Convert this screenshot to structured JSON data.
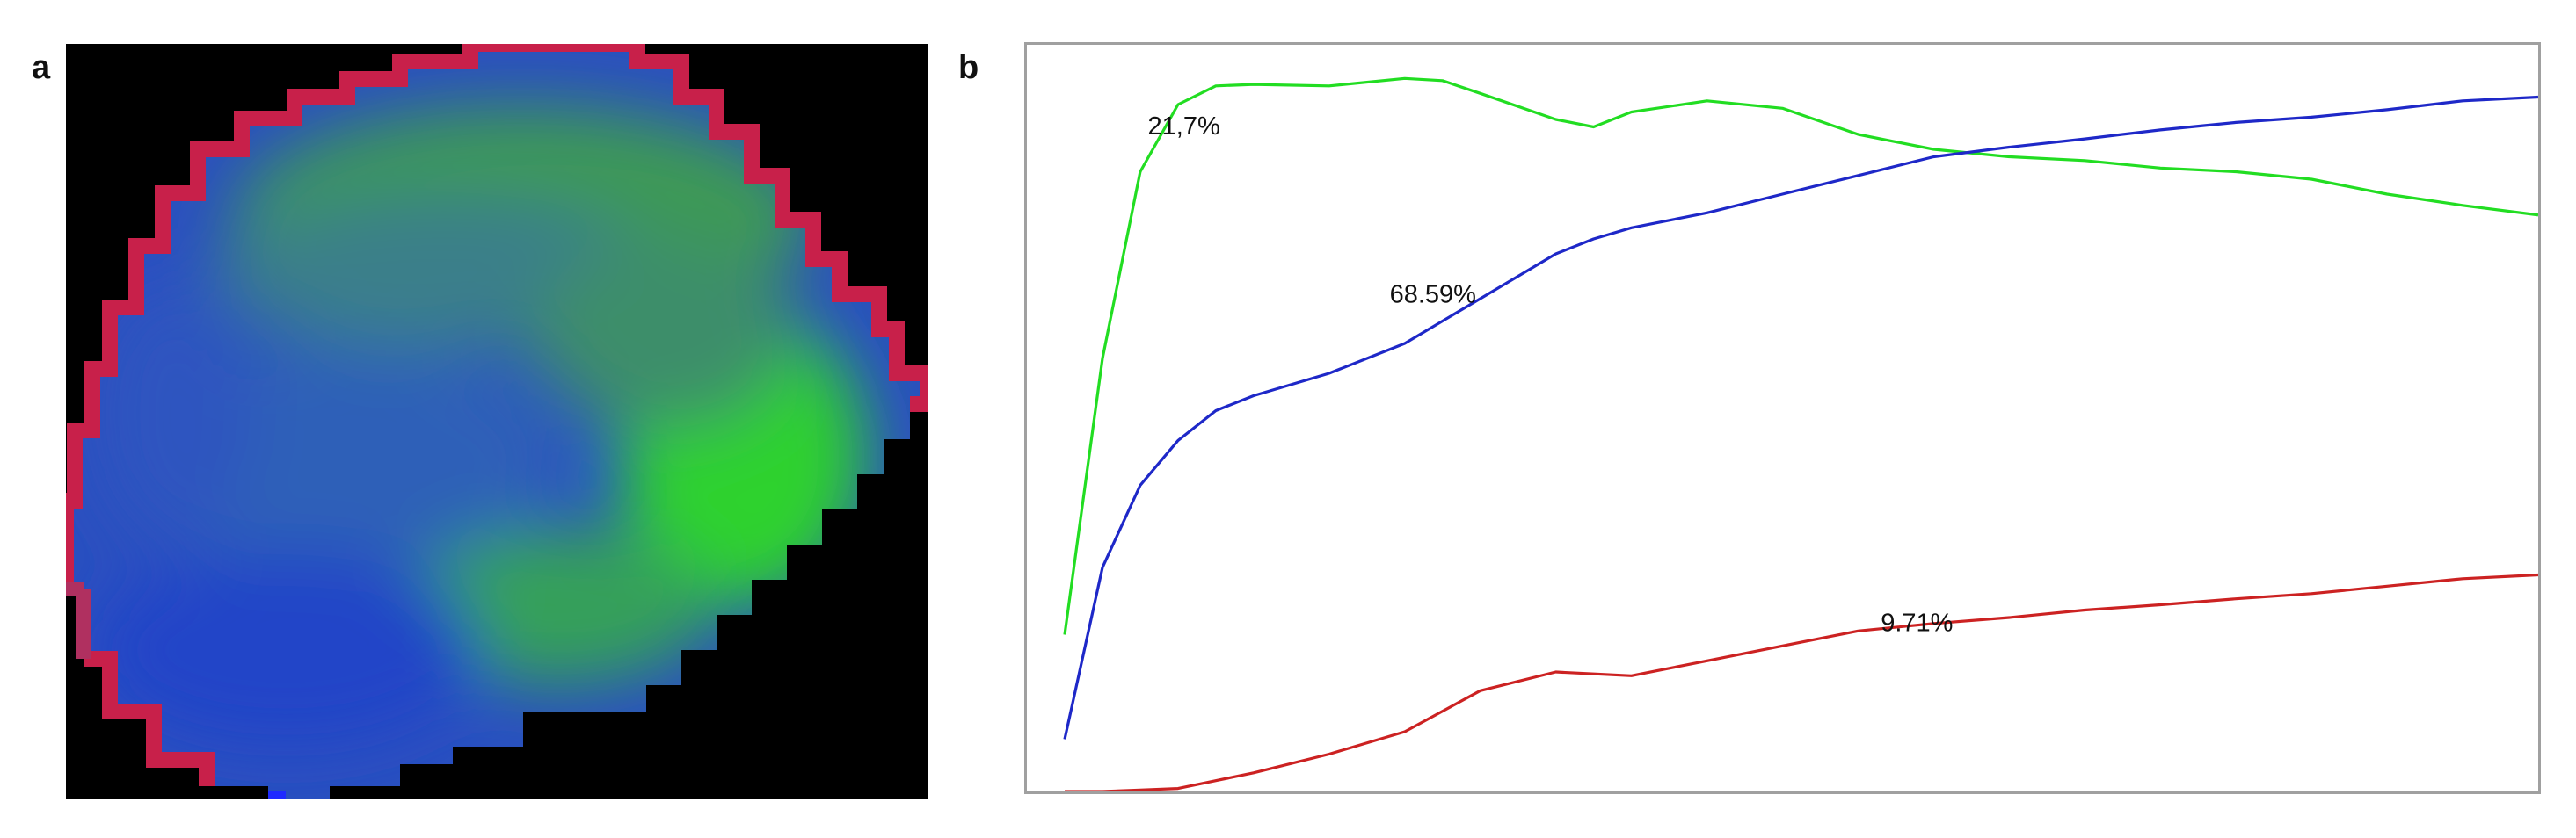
{
  "panels": {
    "a_label": "a",
    "b_label": "b"
  },
  "colors": {
    "background_map": "#000000",
    "frame": "#a0a0a0"
  },
  "chart_data": {
    "type": "line",
    "title": "",
    "xlabel": "",
    "ylabel": "",
    "x_range": [
      0,
      20
    ],
    "ylim": [
      0,
      1
    ],
    "grid": false,
    "legend": "none",
    "series": [
      {
        "color": "#22dd22",
        "label": "21,7%",
        "points": [
          [
            0.5,
            0.21
          ],
          [
            1,
            0.58
          ],
          [
            1.5,
            0.83
          ],
          [
            2,
            0.92
          ],
          [
            2.5,
            0.945
          ],
          [
            3,
            0.947
          ],
          [
            4,
            0.945
          ],
          [
            5,
            0.955
          ],
          [
            5.5,
            0.952
          ],
          [
            6,
            0.935
          ],
          [
            7,
            0.9
          ],
          [
            7.5,
            0.89
          ],
          [
            8,
            0.91
          ],
          [
            9,
            0.925
          ],
          [
            10,
            0.915
          ],
          [
            11,
            0.88
          ],
          [
            12,
            0.86
          ],
          [
            13,
            0.85
          ],
          [
            14,
            0.845
          ],
          [
            15,
            0.835
          ],
          [
            16,
            0.83
          ],
          [
            17,
            0.82
          ],
          [
            18,
            0.8
          ],
          [
            19,
            0.785
          ],
          [
            20,
            0.772
          ]
        ]
      },
      {
        "color": "#1e28c8",
        "label": "68.59%",
        "points": [
          [
            0.5,
            0.07
          ],
          [
            1,
            0.3
          ],
          [
            1.5,
            0.41
          ],
          [
            2,
            0.47
          ],
          [
            2.5,
            0.51
          ],
          [
            3,
            0.53
          ],
          [
            4,
            0.56
          ],
          [
            5,
            0.6
          ],
          [
            6,
            0.66
          ],
          [
            7,
            0.72
          ],
          [
            7.5,
            0.74
          ],
          [
            8,
            0.755
          ],
          [
            9,
            0.775
          ],
          [
            10,
            0.8
          ],
          [
            11,
            0.825
          ],
          [
            12,
            0.85
          ],
          [
            13,
            0.863
          ],
          [
            14,
            0.874
          ],
          [
            15,
            0.886
          ],
          [
            16,
            0.896
          ],
          [
            17,
            0.903
          ],
          [
            18,
            0.913
          ],
          [
            19,
            0.925
          ],
          [
            20,
            0.93
          ]
        ]
      },
      {
        "color": "#cc2222",
        "label": "9.71%",
        "points": [
          [
            0.5,
            0
          ],
          [
            1,
            0
          ],
          [
            1.5,
            0.002
          ],
          [
            2,
            0.004
          ],
          [
            3,
            0.025
          ],
          [
            4,
            0.05
          ],
          [
            5,
            0.08
          ],
          [
            6,
            0.135
          ],
          [
            7,
            0.16
          ],
          [
            8,
            0.155
          ],
          [
            9,
            0.175
          ],
          [
            10,
            0.195
          ],
          [
            11,
            0.215
          ],
          [
            12,
            0.225
          ],
          [
            13,
            0.233
          ],
          [
            14,
            0.243
          ],
          [
            15,
            0.25
          ],
          [
            16,
            0.258
          ],
          [
            17,
            0.265
          ],
          [
            18,
            0.275
          ],
          [
            19,
            0.285
          ],
          [
            20,
            0.29
          ]
        ]
      }
    ],
    "annotations": [
      {
        "text": "21,7%",
        "series": 0,
        "x": 1.6,
        "y": 0.88
      },
      {
        "text": "68.59%",
        "series": 1,
        "x": 4.8,
        "y": 0.655
      },
      {
        "text": "9.71%",
        "series": 2,
        "x": 11.3,
        "y": 0.215
      }
    ]
  }
}
